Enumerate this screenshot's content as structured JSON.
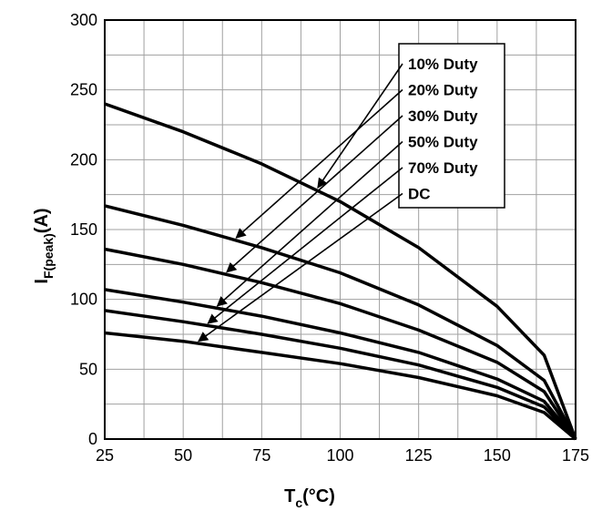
{
  "chart_data": {
    "type": "line",
    "xlabel_main": "T",
    "xlabel_sub": "c",
    "xlabel_unit": "(°C)",
    "ylabel_main": "I",
    "ylabel_sub": "F(peak)",
    "ylabel_unit": "(A)",
    "xlim": [
      25,
      175
    ],
    "ylim": [
      0,
      300
    ],
    "x_ticks": [
      "25",
      "50",
      "75",
      "100",
      "125",
      "150",
      "175"
    ],
    "y_ticks": [
      "0",
      "50",
      "100",
      "150",
      "200",
      "250",
      "300"
    ],
    "grid": true,
    "legend": [
      "10% Duty",
      "20% Duty",
      "30% Duty",
      "50% Duty",
      "70% Duty",
      "DC"
    ],
    "series": [
      {
        "name": "10% Duty",
        "x": [
          25,
          50,
          75,
          100,
          125,
          150,
          165,
          175
        ],
        "y": [
          240,
          220,
          197,
          170,
          137,
          95,
          60,
          0
        ]
      },
      {
        "name": "20% Duty",
        "x": [
          25,
          50,
          75,
          100,
          125,
          150,
          165,
          175
        ],
        "y": [
          167,
          153,
          137,
          119,
          96,
          67,
          42,
          0
        ]
      },
      {
        "name": "30% Duty",
        "x": [
          25,
          50,
          75,
          100,
          125,
          150,
          165,
          175
        ],
        "y": [
          136,
          125,
          112,
          97,
          78,
          55,
          34,
          0
        ]
      },
      {
        "name": "50% Duty",
        "x": [
          25,
          50,
          75,
          100,
          125,
          150,
          165,
          175
        ],
        "y": [
          107,
          98,
          88,
          76,
          62,
          43,
          27,
          0
        ]
      },
      {
        "name": "70% Duty",
        "x": [
          25,
          50,
          75,
          100,
          125,
          150,
          165,
          175
        ],
        "y": [
          92,
          84,
          75,
          65,
          53,
          37,
          23,
          0
        ]
      },
      {
        "name": "DC",
        "x": [
          25,
          50,
          75,
          100,
          125,
          150,
          165,
          175
        ],
        "y": [
          76,
          70,
          62,
          54,
          44,
          31,
          19,
          0
        ]
      }
    ]
  }
}
